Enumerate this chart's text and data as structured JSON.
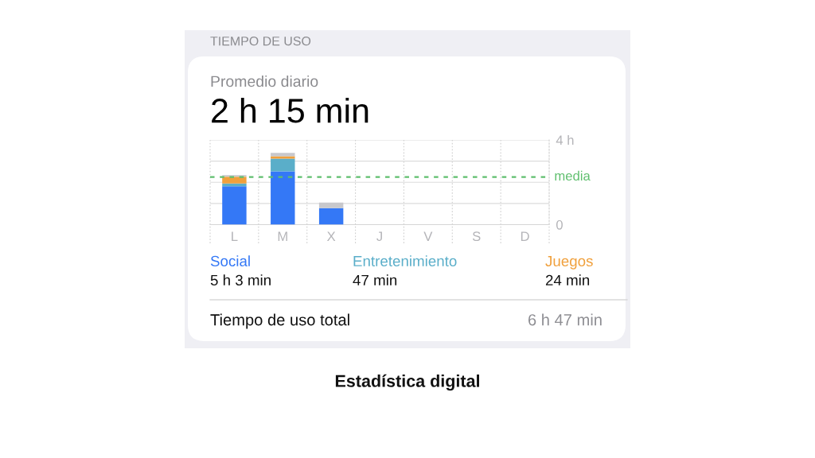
{
  "chart_data": {
    "type": "bar",
    "title": "TIEMPO DE USO",
    "subtitle": "Promedio diario",
    "categories": [
      "L",
      "M",
      "X",
      "J",
      "V",
      "S",
      "D"
    ],
    "stacked": true,
    "series": [
      {
        "name": "Social",
        "color": "#3478f6",
        "values": [
          1.81,
          2.52,
          0.78,
          null,
          null,
          null,
          null
        ]
      },
      {
        "name": "Entretenimiento",
        "color": "#5aaec9",
        "values": [
          0.13,
          0.6,
          null,
          null,
          null,
          null,
          null
        ]
      },
      {
        "name": "Juegos",
        "color": "#f0a03c",
        "values": [
          0.32,
          0.11,
          null,
          null,
          null,
          null,
          null
        ]
      },
      {
        "color": "#c8c8cc",
        "values": [
          0.08,
          0.16,
          0.26,
          null,
          null,
          null,
          null
        ]
      }
    ],
    "ylim": [
      0,
      4
    ],
    "yticks": [
      0,
      {
        "value": 1,
        "label": null
      },
      {
        "value": 2,
        "label": null
      },
      {
        "value": 3,
        "label": null
      },
      {
        "value": 4,
        "label": "4 h"
      }
    ],
    "grid": true,
    "legend": "bottom",
    "ref_lines": [
      {
        "axis": "y",
        "value": 2.25,
        "label": "media",
        "color": "#5fbf6e",
        "line_style": "dashed"
      }
    ],
    "annotations": [
      "2 h 15 min",
      "5 h 3 min",
      "47 min",
      "24 min",
      "Tiempo de uso total",
      "6 h 47 min",
      "Estadística digital"
    ]
  }
}
